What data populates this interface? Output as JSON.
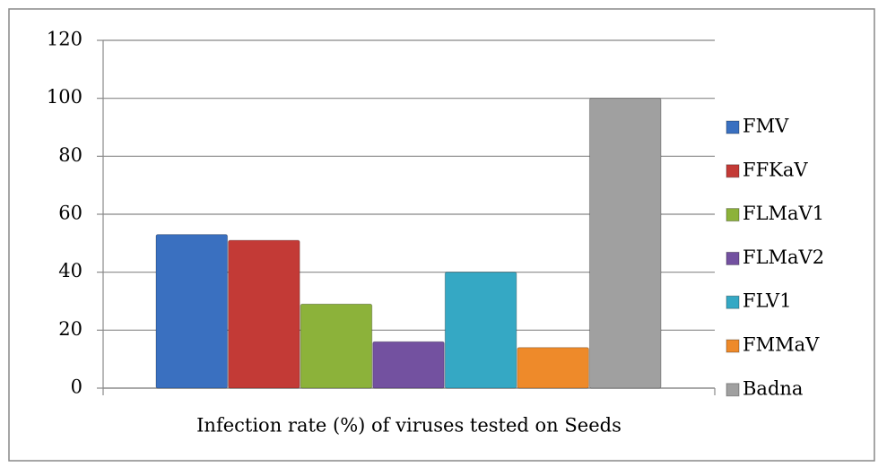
{
  "chart_data": {
    "type": "bar",
    "title": "Infection rate (%) of viruses tested on Seeds",
    "categories": [
      null
    ],
    "series": [
      {
        "name": "FMV",
        "color": "#3a70c0",
        "values": [
          53
        ]
      },
      {
        "name": "FFKaV",
        "color": "#c33a36",
        "values": [
          51
        ]
      },
      {
        "name": "FLMaV1",
        "color": "#8cb23a",
        "values": [
          29
        ]
      },
      {
        "name": "FLMaV2",
        "color": "#7351a0",
        "values": [
          16
        ]
      },
      {
        "name": "FLV1",
        "color": "#35a8c4",
        "values": [
          40
        ]
      },
      {
        "name": "FMMaV",
        "color": "#ee8a2a",
        "values": [
          14
        ]
      },
      {
        "name": "Badna",
        "color": "#a0a0a0",
        "values": [
          100
        ]
      }
    ],
    "ylim": [
      0,
      120
    ],
    "yticks": [
      0,
      20,
      40,
      60,
      80,
      100,
      120
    ],
    "grid": true,
    "legend": "right"
  }
}
